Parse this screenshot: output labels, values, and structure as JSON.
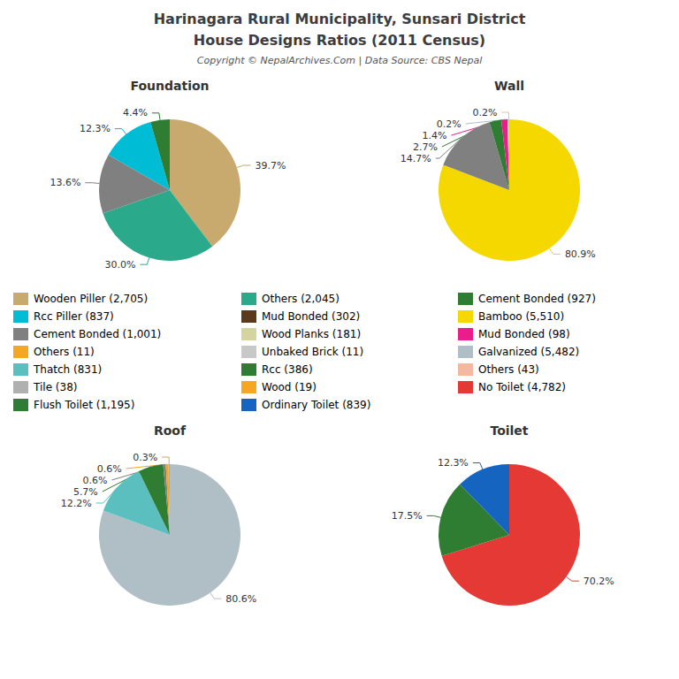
{
  "title": "Harinagara Rural Municipality, Sunsari District",
  "subtitle": "House Designs Ratios (2011 Census)",
  "annotations": [
    "Copyright © NepalArchives.Com | Data Source: CBS Nepal"
  ],
  "chart_data": [
    {
      "type": "pie",
      "title": "Foundation",
      "values": [
        39.7,
        30.0,
        13.6,
        12.3,
        4.4
      ],
      "value_labels": [
        "39.7%",
        "30.0%",
        "13.6%",
        "12.3%",
        "4.4%"
      ],
      "colors": [
        "#c8a96e",
        "#2aaa8a",
        "#808080",
        "#00bcd4",
        "#2e7d32"
      ],
      "data_labels": true
    },
    {
      "type": "pie",
      "title": "Wall",
      "values": [
        80.9,
        14.7,
        2.7,
        1.4,
        0.2,
        0.2
      ],
      "value_labels": [
        "80.9%",
        "14.7%",
        "2.7%",
        "1.4%",
        "0.2%",
        "0.2%"
      ],
      "colors": [
        "#f5d800",
        "#808080",
        "#2e7d32",
        "#e91e8c",
        "#b0bec5",
        "#f4b8a0"
      ],
      "data_labels": true
    },
    {
      "type": "pie",
      "title": "Roof",
      "values": [
        80.6,
        12.2,
        5.7,
        0.6,
        0.6,
        0.3
      ],
      "value_labels": [
        "80.6%",
        "12.2%",
        "5.7%",
        "0.6%",
        "0.6%",
        "0.3%"
      ],
      "colors": [
        "#b0bec5",
        "#5bbfbf",
        "#2e7d32",
        "#808080",
        "#f5a623",
        "#c8a96e"
      ],
      "data_labels": true
    },
    {
      "type": "pie",
      "title": "Toilet",
      "values": [
        70.2,
        17.5,
        12.3
      ],
      "value_labels": [
        "70.2%",
        "17.5%",
        "12.3%"
      ],
      "colors": [
        "#e53935",
        "#2e7d32",
        "#1565c0"
      ],
      "data_labels": true
    }
  ],
  "legend_entries": [
    [
      {
        "name": "Wooden Piller (2,705)",
        "color": "#c8a96e"
      },
      {
        "name": "Rcc Piller (837)",
        "color": "#00bcd4"
      },
      {
        "name": "Cement Bonded (1,001)",
        "color": "#808080"
      },
      {
        "name": "Others (11)",
        "color": "#f5a623"
      },
      {
        "name": "Thatch (831)",
        "color": "#5bbfbf"
      },
      {
        "name": "Tile (38)",
        "color": "#b0b0b0"
      },
      {
        "name": "Flush Toilet (1,195)",
        "color": "#2e7d32"
      }
    ],
    [
      {
        "name": "Others (2,045)",
        "color": "#2aaa8a"
      },
      {
        "name": "Mud Bonded (302)",
        "color": "#5a3a1a"
      },
      {
        "name": "Wood Planks (181)",
        "color": "#d4d4a0"
      },
      {
        "name": "Unbaked Brick (11)",
        "color": "#c8c8c8"
      },
      {
        "name": "Rcc (386)",
        "color": "#2e7d32"
      },
      {
        "name": "Wood (19)",
        "color": "#f5a623"
      },
      {
        "name": "Ordinary Toilet (839)",
        "color": "#1565c0"
      }
    ],
    [
      {
        "name": "Cement Bonded (927)",
        "color": "#2e7d32"
      },
      {
        "name": "Bamboo (5,510)",
        "color": "#f5d800"
      },
      {
        "name": "Mud Bonded (98)",
        "color": "#e91e8c"
      },
      {
        "name": "Galvanized (5,482)",
        "color": "#b0bec5"
      },
      {
        "name": "Others (43)",
        "color": "#f4b8a0"
      },
      {
        "name": "No Toilet (4,782)",
        "color": "#e53935"
      }
    ]
  ]
}
